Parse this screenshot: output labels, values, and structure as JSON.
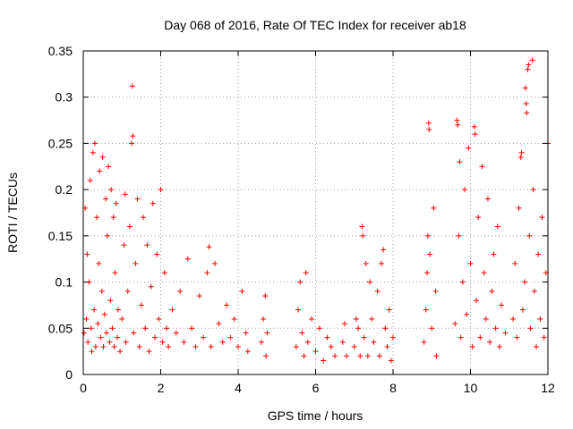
{
  "chart_data": {
    "type": "scatter",
    "title": "Day 068 of 2016, Rate Of TEC Index for receiver ab18",
    "xlabel": "GPS time / hours",
    "ylabel": "ROTI / TECUs",
    "xlim": [
      0,
      12
    ],
    "ylim": [
      0,
      0.35
    ],
    "xticks": [
      0,
      2,
      4,
      6,
      8,
      10,
      12
    ],
    "xtick_labels": [
      "0",
      "2",
      "4",
      "6",
      "8",
      "10",
      "12"
    ],
    "yticks": [
      0,
      0.05,
      0.1,
      0.15,
      0.2,
      0.25,
      0.3,
      0.35
    ],
    "ytick_labels": [
      "0",
      "0.05",
      "0.1",
      "0.15",
      "0.2",
      "0.25",
      "0.3",
      "0.35"
    ],
    "grid": true,
    "marker": "+",
    "color": "#ff0000",
    "series": [
      {
        "name": "ROTI",
        "points": [
          [
            0.02,
            0.045
          ],
          [
            0.05,
            0.18
          ],
          [
            0.08,
            0.06
          ],
          [
            0.1,
            0.13
          ],
          [
            0.12,
            0.035
          ],
          [
            0.15,
            0.1
          ],
          [
            0.18,
            0.21
          ],
          [
            0.2,
            0.05
          ],
          [
            0.22,
            0.025
          ],
          [
            0.25,
            0.24
          ],
          [
            0.28,
            0.07
          ],
          [
            0.3,
            0.25
          ],
          [
            0.32,
            0.03
          ],
          [
            0.35,
            0.17
          ],
          [
            0.38,
            0.055
          ],
          [
            0.4,
            0.12
          ],
          [
            0.42,
            0.22
          ],
          [
            0.45,
            0.04
          ],
          [
            0.48,
            0.09
          ],
          [
            0.5,
            0.235
          ],
          [
            0.52,
            0.03
          ],
          [
            0.55,
            0.065
          ],
          [
            0.58,
            0.19
          ],
          [
            0.6,
            0.045
          ],
          [
            0.62,
            0.15
          ],
          [
            0.65,
            0.225
          ],
          [
            0.68,
            0.035
          ],
          [
            0.7,
            0.08
          ],
          [
            0.72,
            0.2
          ],
          [
            0.75,
            0.05
          ],
          [
            0.78,
            0.17
          ],
          [
            0.8,
            0.03
          ],
          [
            0.82,
            0.11
          ],
          [
            0.85,
            0.185
          ],
          [
            0.88,
            0.04
          ],
          [
            0.9,
            0.07
          ],
          [
            0.95,
            0.025
          ],
          [
            1.0,
            0.06
          ],
          [
            1.05,
            0.14
          ],
          [
            1.08,
            0.195
          ],
          [
            1.1,
            0.035
          ],
          [
            1.15,
            0.09
          ],
          [
            1.2,
            0.16
          ],
          [
            1.25,
            0.25
          ],
          [
            1.27,
            0.312
          ],
          [
            1.28,
            0.258
          ],
          [
            1.3,
            0.045
          ],
          [
            1.35,
            0.12
          ],
          [
            1.4,
            0.19
          ],
          [
            1.45,
            0.03
          ],
          [
            1.5,
            0.075
          ],
          [
            1.55,
            0.17
          ],
          [
            1.6,
            0.05
          ],
          [
            1.65,
            0.14
          ],
          [
            1.7,
            0.025
          ],
          [
            1.75,
            0.095
          ],
          [
            1.8,
            0.185
          ],
          [
            1.85,
            0.04
          ],
          [
            1.9,
            0.13
          ],
          [
            1.95,
            0.06
          ],
          [
            2.0,
            0.2
          ],
          [
            2.05,
            0.035
          ],
          [
            2.1,
            0.11
          ],
          [
            2.15,
            0.05
          ],
          [
            2.2,
            0.03
          ],
          [
            2.3,
            0.07
          ],
          [
            2.4,
            0.045
          ],
          [
            2.5,
            0.09
          ],
          [
            2.6,
            0.035
          ],
          [
            2.7,
            0.125
          ],
          [
            2.8,
            0.05
          ],
          [
            2.9,
            0.03
          ],
          [
            3.0,
            0.085
          ],
          [
            3.1,
            0.04
          ],
          [
            3.2,
            0.11
          ],
          [
            3.25,
            0.138
          ],
          [
            3.3,
            0.03
          ],
          [
            3.4,
            0.12
          ],
          [
            3.5,
            0.055
          ],
          [
            3.6,
            0.035
          ],
          [
            3.7,
            0.075
          ],
          [
            3.8,
            0.04
          ],
          [
            3.9,
            0.06
          ],
          [
            4.0,
            0.03
          ],
          [
            4.1,
            0.09
          ],
          [
            4.2,
            0.045
          ],
          [
            4.25,
            0.025
          ],
          [
            4.6,
            0.035
          ],
          [
            4.65,
            0.06
          ],
          [
            4.7,
            0.085
          ],
          [
            4.72,
            0.02
          ],
          [
            4.75,
            0.045
          ],
          [
            5.5,
            0.03
          ],
          [
            5.55,
            0.07
          ],
          [
            5.6,
            0.1
          ],
          [
            5.65,
            0.045
          ],
          [
            5.7,
            0.02
          ],
          [
            5.75,
            0.11
          ],
          [
            5.8,
            0.035
          ],
          [
            5.9,
            0.06
          ],
          [
            6.0,
            0.025
          ],
          [
            6.1,
            0.05
          ],
          [
            6.2,
            0.015
          ],
          [
            6.3,
            0.04
          ],
          [
            6.4,
            0.03
          ],
          [
            6.5,
            0.02
          ],
          [
            6.7,
            0.035
          ],
          [
            6.75,
            0.055
          ],
          [
            6.8,
            0.02
          ],
          [
            7.0,
            0.03
          ],
          [
            7.05,
            0.06
          ],
          [
            7.1,
            0.05
          ],
          [
            7.15,
            0.02
          ],
          [
            7.2,
            0.16
          ],
          [
            7.22,
            0.15
          ],
          [
            7.25,
            0.04
          ],
          [
            7.3,
            0.12
          ],
          [
            7.35,
            0.02
          ],
          [
            7.4,
            0.1
          ],
          [
            7.45,
            0.06
          ],
          [
            7.5,
            0.035
          ],
          [
            7.6,
            0.09
          ],
          [
            7.65,
            0.02
          ],
          [
            7.7,
            0.12
          ],
          [
            7.75,
            0.135
          ],
          [
            7.8,
            0.05
          ],
          [
            7.85,
            0.03
          ],
          [
            7.9,
            0.07
          ],
          [
            7.95,
            0.015
          ],
          [
            8.0,
            0.04
          ],
          [
            8.8,
            0.035
          ],
          [
            8.85,
            0.07
          ],
          [
            8.88,
            0.11
          ],
          [
            8.9,
            0.15
          ],
          [
            8.92,
            0.272
          ],
          [
            8.93,
            0.265
          ],
          [
            8.95,
            0.13
          ],
          [
            9.0,
            0.05
          ],
          [
            9.05,
            0.18
          ],
          [
            9.1,
            0.09
          ],
          [
            9.12,
            0.02
          ],
          [
            9.6,
            0.055
          ],
          [
            9.65,
            0.275
          ],
          [
            9.67,
            0.27
          ],
          [
            9.7,
            0.15
          ],
          [
            9.72,
            0.23
          ],
          [
            9.75,
            0.04
          ],
          [
            9.8,
            0.1
          ],
          [
            9.85,
            0.2
          ],
          [
            9.9,
            0.065
          ],
          [
            9.95,
            0.245
          ],
          [
            10.0,
            0.12
          ],
          [
            10.05,
            0.03
          ],
          [
            10.1,
            0.268
          ],
          [
            10.12,
            0.26
          ],
          [
            10.15,
            0.08
          ],
          [
            10.2,
            0.17
          ],
          [
            10.25,
            0.04
          ],
          [
            10.3,
            0.225
          ],
          [
            10.35,
            0.11
          ],
          [
            10.4,
            0.06
          ],
          [
            10.45,
            0.19
          ],
          [
            10.5,
            0.035
          ],
          [
            10.55,
            0.09
          ],
          [
            10.6,
            0.13
          ],
          [
            10.65,
            0.05
          ],
          [
            10.7,
            0.16
          ],
          [
            10.75,
            0.03
          ],
          [
            10.8,
            0.075
          ],
          [
            10.9,
            0.045
          ],
          [
            11.1,
            0.06
          ],
          [
            11.15,
            0.12
          ],
          [
            11.2,
            0.04
          ],
          [
            11.25,
            0.18
          ],
          [
            11.3,
            0.235
          ],
          [
            11.32,
            0.24
          ],
          [
            11.35,
            0.07
          ],
          [
            11.4,
            0.1
          ],
          [
            11.42,
            0.31
          ],
          [
            11.44,
            0.293
          ],
          [
            11.45,
            0.283
          ],
          [
            11.48,
            0.33
          ],
          [
            11.5,
            0.335
          ],
          [
            11.52,
            0.15
          ],
          [
            11.55,
            0.05
          ],
          [
            11.6,
            0.34
          ],
          [
            11.62,
            0.2
          ],
          [
            11.65,
            0.09
          ],
          [
            11.7,
            0.03
          ],
          [
            11.75,
            0.13
          ],
          [
            11.8,
            0.06
          ],
          [
            11.85,
            0.17
          ],
          [
            11.9,
            0.04
          ],
          [
            11.95,
            0.11
          ],
          [
            12.0,
            0.25
          ]
        ]
      }
    ]
  }
}
